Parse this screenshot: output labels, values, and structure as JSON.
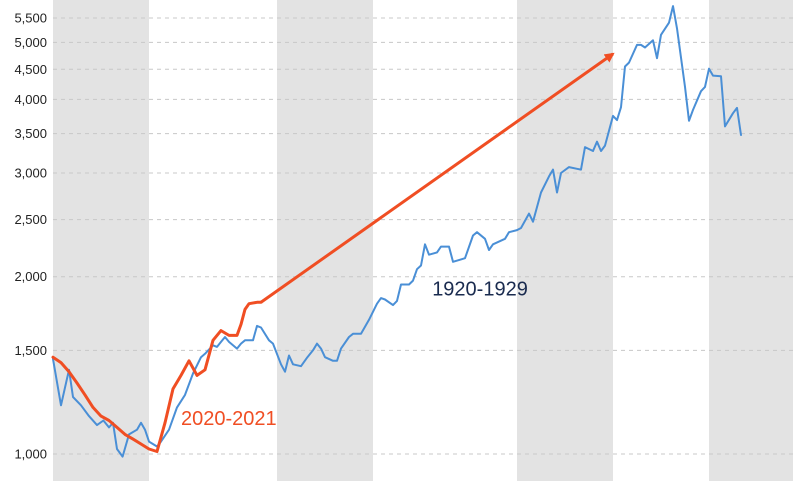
{
  "chart_data": {
    "type": "line",
    "title": "",
    "xlabel": "",
    "ylabel": "",
    "y_scale": "log",
    "ylim": [
      900,
      5900
    ],
    "y_ticks": [
      1000,
      1500,
      2000,
      2500,
      3000,
      3500,
      4000,
      4500,
      5000,
      5500
    ],
    "y_tick_labels": [
      "1,000",
      "1,500",
      "2,000",
      "2,500",
      "3,000",
      "3,500",
      "4,000",
      "4,500",
      "5,000",
      "5,500"
    ],
    "grid": "horizontal dashed",
    "shaded_x_ranges": [
      [
        0,
        12
      ],
      [
        28,
        40
      ],
      [
        58,
        70
      ],
      [
        82,
        94
      ]
    ],
    "xlim": [
      0,
      92.5
    ],
    "series": [
      {
        "name": "1920-1929",
        "color": "#4a8fd6",
        "values": [
          {
            "x": 0,
            "y": 1450
          },
          {
            "x": 1,
            "y": 1210
          },
          {
            "x": 2,
            "y": 1390
          },
          {
            "x": 2.5,
            "y": 1250
          },
          {
            "x": 3.5,
            "y": 1210
          },
          {
            "x": 4.5,
            "y": 1160
          },
          {
            "x": 5.5,
            "y": 1120
          },
          {
            "x": 6.3,
            "y": 1140
          },
          {
            "x": 7,
            "y": 1110
          },
          {
            "x": 7.5,
            "y": 1130
          },
          {
            "x": 8,
            "y": 1020
          },
          {
            "x": 8.7,
            "y": 990
          },
          {
            "x": 9.5,
            "y": 1080
          },
          {
            "x": 10.5,
            "y": 1100
          },
          {
            "x": 11,
            "y": 1130
          },
          {
            "x": 11.5,
            "y": 1100
          },
          {
            "x": 12,
            "y": 1050
          },
          {
            "x": 13,
            "y": 1030
          },
          {
            "x": 13.5,
            "y": 1050
          },
          {
            "x": 14.5,
            "y": 1100
          },
          {
            "x": 15.5,
            "y": 1200
          },
          {
            "x": 16.5,
            "y": 1260
          },
          {
            "x": 17.5,
            "y": 1370
          },
          {
            "x": 18.5,
            "y": 1460
          },
          {
            "x": 19,
            "y": 1480
          },
          {
            "x": 20,
            "y": 1530
          },
          {
            "x": 20.5,
            "y": 1520
          },
          {
            "x": 21,
            "y": 1550
          },
          {
            "x": 21.5,
            "y": 1580
          },
          {
            "x": 22,
            "y": 1550
          },
          {
            "x": 23,
            "y": 1510
          },
          {
            "x": 23.5,
            "y": 1540
          },
          {
            "x": 24,
            "y": 1560
          },
          {
            "x": 25,
            "y": 1560
          },
          {
            "x": 25.5,
            "y": 1650
          },
          {
            "x": 26,
            "y": 1640
          },
          {
            "x": 27,
            "y": 1560
          },
          {
            "x": 27.5,
            "y": 1540
          },
          {
            "x": 28.5,
            "y": 1420
          },
          {
            "x": 29,
            "y": 1380
          },
          {
            "x": 29.5,
            "y": 1470
          },
          {
            "x": 30,
            "y": 1420
          },
          {
            "x": 31,
            "y": 1410
          },
          {
            "x": 31.8,
            "y": 1460
          },
          {
            "x": 32.5,
            "y": 1500
          },
          {
            "x": 33,
            "y": 1540
          },
          {
            "x": 33.5,
            "y": 1510
          },
          {
            "x": 34,
            "y": 1460
          },
          {
            "x": 35,
            "y": 1440
          },
          {
            "x": 35.5,
            "y": 1440
          },
          {
            "x": 36,
            "y": 1510
          },
          {
            "x": 37,
            "y": 1580
          },
          {
            "x": 37.5,
            "y": 1600
          },
          {
            "x": 38.5,
            "y": 1600
          },
          {
            "x": 39.5,
            "y": 1690
          },
          {
            "x": 40.5,
            "y": 1800
          },
          {
            "x": 41,
            "y": 1840
          },
          {
            "x": 41.5,
            "y": 1830
          },
          {
            "x": 42.5,
            "y": 1790
          },
          {
            "x": 43,
            "y": 1820
          },
          {
            "x": 43.5,
            "y": 1940
          },
          {
            "x": 44.5,
            "y": 1940
          },
          {
            "x": 45,
            "y": 1970
          },
          {
            "x": 45.5,
            "y": 2060
          },
          {
            "x": 46,
            "y": 2090
          },
          {
            "x": 46.5,
            "y": 2270
          },
          {
            "x": 47,
            "y": 2180
          },
          {
            "x": 48,
            "y": 2200
          },
          {
            "x": 48.5,
            "y": 2250
          },
          {
            "x": 49.5,
            "y": 2250
          },
          {
            "x": 50,
            "y": 2120
          },
          {
            "x": 51,
            "y": 2140
          },
          {
            "x": 51.5,
            "y": 2150
          },
          {
            "x": 52.5,
            "y": 2350
          },
          {
            "x": 53,
            "y": 2380
          },
          {
            "x": 54,
            "y": 2320
          },
          {
            "x": 54.5,
            "y": 2220
          },
          {
            "x": 55,
            "y": 2270
          },
          {
            "x": 56.5,
            "y": 2320
          },
          {
            "x": 57,
            "y": 2380
          },
          {
            "x": 58,
            "y": 2400
          },
          {
            "x": 58.5,
            "y": 2420
          },
          {
            "x": 59.5,
            "y": 2560
          },
          {
            "x": 60,
            "y": 2480
          },
          {
            "x": 61,
            "y": 2780
          },
          {
            "x": 62,
            "y": 2960
          },
          {
            "x": 62.5,
            "y": 3040
          },
          {
            "x": 63,
            "y": 2780
          },
          {
            "x": 63.5,
            "y": 3000
          },
          {
            "x": 64.5,
            "y": 3070
          },
          {
            "x": 65.5,
            "y": 3050
          },
          {
            "x": 66,
            "y": 3040
          },
          {
            "x": 66.5,
            "y": 3320
          },
          {
            "x": 67.5,
            "y": 3270
          },
          {
            "x": 68,
            "y": 3390
          },
          {
            "x": 68.5,
            "y": 3270
          },
          {
            "x": 69,
            "y": 3340
          },
          {
            "x": 70,
            "y": 3750
          },
          {
            "x": 70.5,
            "y": 3690
          },
          {
            "x": 71,
            "y": 3880
          },
          {
            "x": 71.5,
            "y": 4550
          },
          {
            "x": 72,
            "y": 4620
          },
          {
            "x": 73,
            "y": 4950
          },
          {
            "x": 73.5,
            "y": 4950
          },
          {
            "x": 74,
            "y": 4900
          },
          {
            "x": 75,
            "y": 5040
          },
          {
            "x": 75.5,
            "y": 4700
          },
          {
            "x": 76,
            "y": 5150
          },
          {
            "x": 77,
            "y": 5400
          },
          {
            "x": 77.5,
            "y": 5760
          },
          {
            "x": 78,
            "y": 5280
          },
          {
            "x": 79,
            "y": 4200
          },
          {
            "x": 79.5,
            "y": 3680
          },
          {
            "x": 80,
            "y": 3840
          },
          {
            "x": 81,
            "y": 4130
          },
          {
            "x": 81.5,
            "y": 4200
          },
          {
            "x": 82,
            "y": 4510
          },
          {
            "x": 82.5,
            "y": 4390
          },
          {
            "x": 83.5,
            "y": 4380
          },
          {
            "x": 84,
            "y": 3600
          },
          {
            "x": 85,
            "y": 3790
          },
          {
            "x": 85.5,
            "y": 3870
          },
          {
            "x": 86,
            "y": 3480
          }
        ]
      },
      {
        "name": "2020-2021",
        "color": "#f04e23",
        "values": [
          {
            "x": 0,
            "y": 1460
          },
          {
            "x": 1,
            "y": 1430
          },
          {
            "x": 2,
            "y": 1380
          },
          {
            "x": 3,
            "y": 1320
          },
          {
            "x": 4,
            "y": 1260
          },
          {
            "x": 5,
            "y": 1200
          },
          {
            "x": 6,
            "y": 1160
          },
          {
            "x": 7,
            "y": 1140
          },
          {
            "x": 8,
            "y": 1110
          },
          {
            "x": 9,
            "y": 1080
          },
          {
            "x": 10,
            "y": 1060
          },
          {
            "x": 11,
            "y": 1040
          },
          {
            "x": 12,
            "y": 1020
          },
          {
            "x": 13,
            "y": 1010
          },
          {
            "x": 14,
            "y": 1130
          },
          {
            "x": 15,
            "y": 1290
          },
          {
            "x": 16,
            "y": 1360
          },
          {
            "x": 17,
            "y": 1440
          },
          {
            "x": 18,
            "y": 1360
          },
          {
            "x": 19,
            "y": 1390
          },
          {
            "x": 20,
            "y": 1560
          },
          {
            "x": 21,
            "y": 1620
          },
          {
            "x": 22,
            "y": 1590
          },
          {
            "x": 23,
            "y": 1590
          },
          {
            "x": 23.5,
            "y": 1660
          },
          {
            "x": 24,
            "y": 1760
          },
          {
            "x": 24.5,
            "y": 1800
          },
          {
            "x": 25.5,
            "y": 1810
          },
          {
            "x": 26,
            "y": 1810
          }
        ]
      }
    ],
    "arrow": {
      "color": "#f04e23",
      "from": {
        "x": 26,
        "y": 1810
      },
      "to": {
        "x": 70,
        "y": 4780
      }
    },
    "annotations": [
      {
        "text": "1920-1929",
        "color": "#1a2b4f",
        "x": 47.4,
        "y": 1860
      },
      {
        "text": "2020-2021",
        "color": "#f04e23",
        "x": 16,
        "y": 1120
      }
    ]
  }
}
